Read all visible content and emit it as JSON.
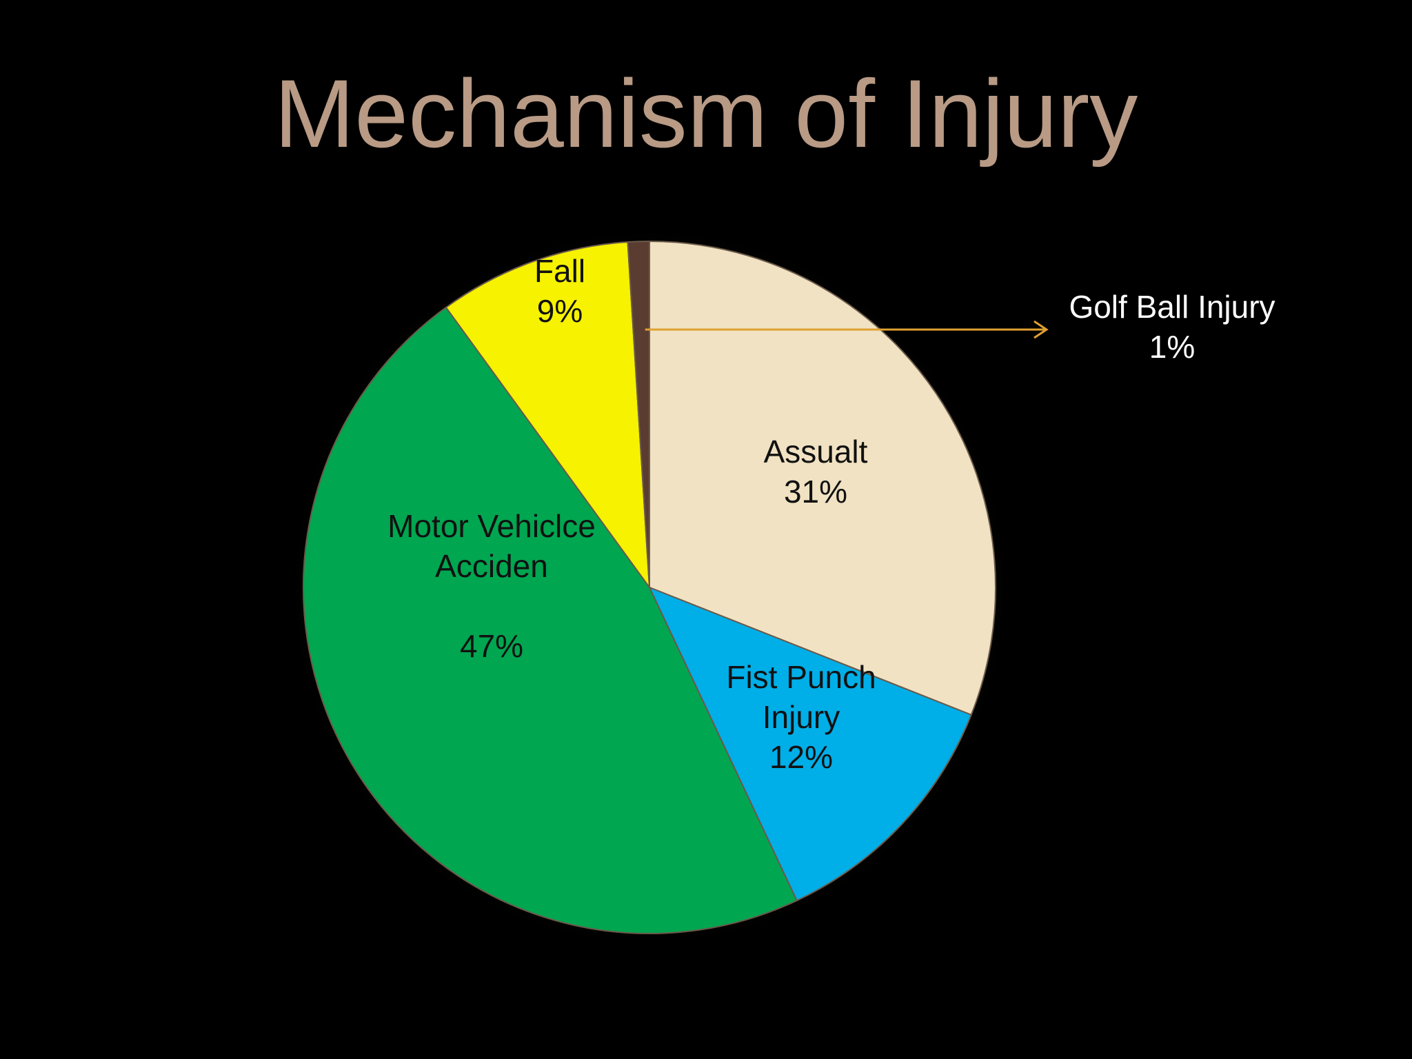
{
  "slide": {
    "background": "#000000",
    "title_color": "#b89a85"
  },
  "chart_data": {
    "type": "pie",
    "title": "Mechanism of Injury",
    "slices": [
      {
        "label_lines": [
          "Assualt"
        ],
        "value_label": "31%",
        "value": 31,
        "color": "#f0e2c2"
      },
      {
        "label_lines": [
          "Fist Punch",
          "Injury"
        ],
        "value_label": "12%",
        "value": 12,
        "color": "#00aee8"
      },
      {
        "label_lines": [
          "Motor Vehiclce",
          "Acciden"
        ],
        "value_label": "47%",
        "value": 47,
        "color": "#00a650"
      },
      {
        "label_lines": [
          "Fall"
        ],
        "value_label": "9%",
        "value": 9,
        "color": "#f6f200"
      },
      {
        "label_lines": [
          "Golf Ball Injury"
        ],
        "value_label": "1%",
        "value": 1,
        "color": "#5a3c30",
        "callout": true,
        "callout_color": "#e0a030"
      }
    ]
  }
}
